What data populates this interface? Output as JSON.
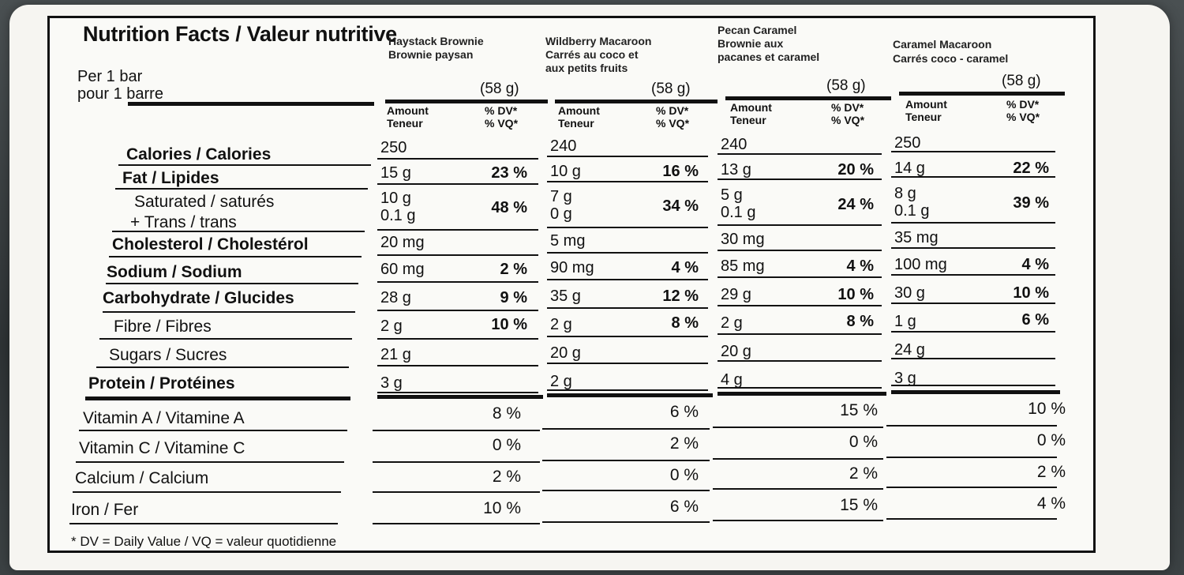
{
  "header": {
    "title": "Nutrition Facts / Valeur nutritive",
    "per_en": "Per 1 bar",
    "per_fr": "pour 1 barre"
  },
  "columns": [
    {
      "name_line1": "Haystack Brownie",
      "name_line2": "Brownie paysan",
      "name_line3": "",
      "serving": "(58 g)",
      "amount_en": "Amount",
      "amount_fr": "Teneur",
      "dv_en": "% DV*",
      "dv_fr": "% VQ*",
      "calories": "250",
      "fat": "15 g",
      "fat_dv": "23 %",
      "saturated": "10 g",
      "trans": "0.1 g",
      "sat_trans_dv": "48 %",
      "cholesterol": "20 mg",
      "sodium": "60 mg",
      "sodium_dv": "2 %",
      "carbohydrate": "28 g",
      "carbohydrate_dv": "9 %",
      "fibre": "2 g",
      "fibre_dv": "10 %",
      "sugars": "21 g",
      "protein": "3 g",
      "vitamin_a": "8 %",
      "vitamin_c": "0 %",
      "calcium": "2 %",
      "iron": "10 %"
    },
    {
      "name_line1": "Wildberry Macaroon",
      "name_line2": "Carrés au coco et",
      "name_line3": "aux petits fruits",
      "serving": "(58 g)",
      "amount_en": "Amount",
      "amount_fr": "Teneur",
      "dv_en": "% DV*",
      "dv_fr": "% VQ*",
      "calories": "240",
      "fat": "10 g",
      "fat_dv": "16 %",
      "saturated": "7 g",
      "trans": "0 g",
      "sat_trans_dv": "34 %",
      "cholesterol": "5 mg",
      "sodium": "90 mg",
      "sodium_dv": "4 %",
      "carbohydrate": "35 g",
      "carbohydrate_dv": "12 %",
      "fibre": "2 g",
      "fibre_dv": "8 %",
      "sugars": "20 g",
      "protein": "2 g",
      "vitamin_a": "6 %",
      "vitamin_c": "2 %",
      "calcium": "0 %",
      "iron": "6 %"
    },
    {
      "name_line1": "Pecan Caramel",
      "name_line2": "Brownie aux",
      "name_line3": "pacanes et caramel",
      "serving": "(58 g)",
      "amount_en": "Amount",
      "amount_fr": "Teneur",
      "dv_en": "% DV*",
      "dv_fr": "% VQ*",
      "calories": "240",
      "fat": "13 g",
      "fat_dv": "20 %",
      "saturated": "5 g",
      "trans": "0.1 g",
      "sat_trans_dv": "24 %",
      "cholesterol": "30 mg",
      "sodium": "85 mg",
      "sodium_dv": "4 %",
      "carbohydrate": "29 g",
      "carbohydrate_dv": "10 %",
      "fibre": "2 g",
      "fibre_dv": "8 %",
      "sugars": "20 g",
      "protein": "4 g",
      "vitamin_a": "15 %",
      "vitamin_c": "0 %",
      "calcium": "2 %",
      "iron": "15 %"
    },
    {
      "name_line1": "Caramel Macaroon",
      "name_line2": "Carrés coco - caramel",
      "name_line3": "",
      "serving": "(58 g)",
      "amount_en": "Amount",
      "amount_fr": "Teneur",
      "dv_en": "% DV*",
      "dv_fr": "% VQ*",
      "calories": "250",
      "fat": "14 g",
      "fat_dv": "22 %",
      "saturated": "8 g",
      "trans": "0.1 g",
      "sat_trans_dv": "39 %",
      "cholesterol": "35 mg",
      "sodium": "100 mg",
      "sodium_dv": "4 %",
      "carbohydrate": "30 g",
      "carbohydrate_dv": "10 %",
      "fibre": "1 g",
      "fibre_dv": "6 %",
      "sugars": "24 g",
      "protein": "3 g",
      "vitamin_a": "10 %",
      "vitamin_c": "0 %",
      "calcium": "2 %",
      "iron": "4 %"
    }
  ],
  "labels": {
    "calories": "Calories / Calories",
    "fat": "Fat / Lipides",
    "saturated": "Saturated / saturés",
    "trans": "+ Trans / trans",
    "cholesterol": "Cholesterol / Cholestérol",
    "sodium": "Sodium / Sodium",
    "carbohydrate": "Carbohydrate / Glucides",
    "fibre": "Fibre / Fibres",
    "sugars": "Sugars / Sucres",
    "protein": "Protein / Protéines",
    "vitamin_a": "Vitamin A / Vitamine A",
    "vitamin_c": "Vitamin C / Vitamine C",
    "calcium": "Calcium / Calcium",
    "iron": "Iron / Fer"
  },
  "footnote": "* DV = Daily Value / VQ = valeur quotidienne"
}
